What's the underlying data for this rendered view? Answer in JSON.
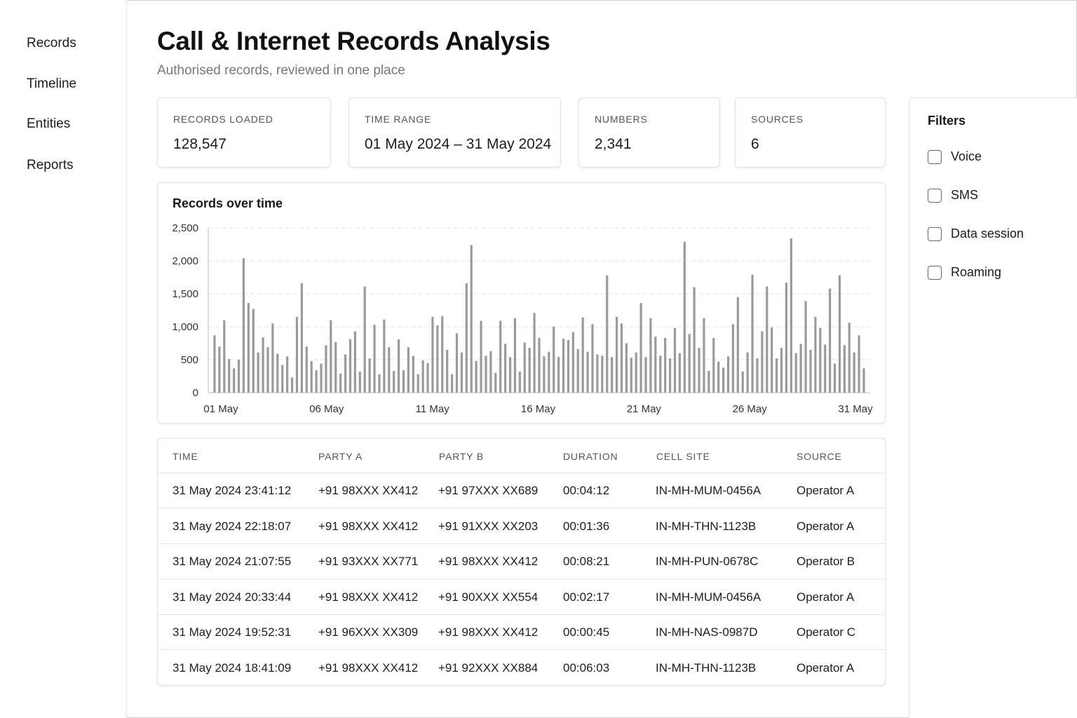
{
  "sidebar": {
    "items": [
      {
        "label": "Records"
      },
      {
        "label": "Timeline"
      },
      {
        "label": "Entities"
      },
      {
        "label": "Reports"
      }
    ]
  },
  "header": {
    "title": "Call & Internet Records Analysis",
    "subtitle": "Authorised records, reviewed in one place"
  },
  "stats": [
    {
      "label": "RECORDS LOADED",
      "value": "128,547"
    },
    {
      "label": "TIME RANGE",
      "value": "01 May 2024 – 31 May 2024"
    },
    {
      "label": "NUMBERS",
      "value": "2,341"
    },
    {
      "label": "SOURCES",
      "value": "6"
    }
  ],
  "chart_title": "Records over time",
  "chart_data": {
    "type": "bar",
    "title": "Records over time",
    "xlabel": "",
    "ylabel": "",
    "ylim": [
      0,
      2500
    ],
    "yticks": [
      "0",
      "500",
      "1,000",
      "1,500",
      "2,000",
      "2,500"
    ],
    "xticks": [
      "01 May",
      "06 May",
      "11 May",
      "16 May",
      "21 May",
      "26 May",
      "31 May"
    ],
    "grid": true,
    "bar_color": "#9a9a9a",
    "values": [
      870,
      700,
      1100,
      510,
      370,
      500,
      2040,
      1360,
      1270,
      610,
      840,
      690,
      1050,
      590,
      420,
      550,
      230,
      1150,
      1660,
      700,
      480,
      340,
      440,
      720,
      1100,
      770,
      290,
      580,
      810,
      930,
      320,
      1610,
      520,
      1030,
      280,
      1110,
      690,
      330,
      810,
      340,
      690,
      560,
      280,
      490,
      450,
      1150,
      1020,
      1160,
      650,
      280,
      900,
      610,
      1660,
      2240,
      480,
      1090,
      560,
      630,
      300,
      1090,
      740,
      540,
      1130,
      320,
      760,
      680,
      1210,
      830,
      550,
      620,
      1000,
      540,
      820,
      800,
      920,
      660,
      1140,
      620,
      1040,
      580,
      560,
      1780,
      540,
      1150,
      1050,
      750,
      530,
      610,
      1360,
      540,
      1130,
      850,
      560,
      830,
      520,
      980,
      600,
      2290,
      890,
      1600,
      680,
      1130,
      330,
      830,
      470,
      380,
      550,
      1040,
      1450,
      320,
      610,
      1790,
      520,
      930,
      1610,
      990,
      520,
      680,
      1670,
      2340,
      600,
      740,
      1390,
      650,
      1150,
      980,
      730,
      1580,
      440,
      1780,
      720,
      1060,
      610,
      870,
      370
    ],
    "series_count": 1
  },
  "table": {
    "columns": [
      "TIME",
      "PARTY A",
      "PARTY B",
      "DURATION",
      "CELL SITE",
      "SOURCE"
    ],
    "rows": [
      [
        "31 May 2024 23:41:12",
        "+91 98XXX XX412",
        "+91 97XXX XX689",
        "00:04:12",
        "IN-MH-MUM-0456A",
        "Operator A"
      ],
      [
        "31 May 2024 22:18:07",
        "+91 98XXX XX412",
        "+91 91XXX XX203",
        "00:01:36",
        "IN-MH-THN-1123B",
        "Operator A"
      ],
      [
        "31 May 2024 21:07:55",
        "+91 93XXX XX771",
        "+91 98XXX XX412",
        "00:08:21",
        "IN-MH-PUN-0678C",
        "Operator B"
      ],
      [
        "31 May 2024 20:33:44",
        "+91 98XXX XX412",
        "+91 90XXX XX554",
        "00:02:17",
        "IN-MH-MUM-0456A",
        "Operator A"
      ],
      [
        "31 May 2024 19:52:31",
        "+91 96XXX XX309",
        "+91 98XXX XX412",
        "00:00:45",
        "IN-MH-NAS-0987D",
        "Operator C"
      ],
      [
        "31 May 2024 18:41:09",
        "+91 98XXX XX412",
        "+91 92XXX XX884",
        "00:06:03",
        "IN-MH-THN-1123B",
        "Operator A"
      ]
    ]
  },
  "filters": {
    "title": "Filters",
    "items": [
      {
        "label": "Voice",
        "checked": false
      },
      {
        "label": "SMS",
        "checked": false
      },
      {
        "label": "Data session",
        "checked": false
      },
      {
        "label": "Roaming",
        "checked": false
      }
    ]
  }
}
